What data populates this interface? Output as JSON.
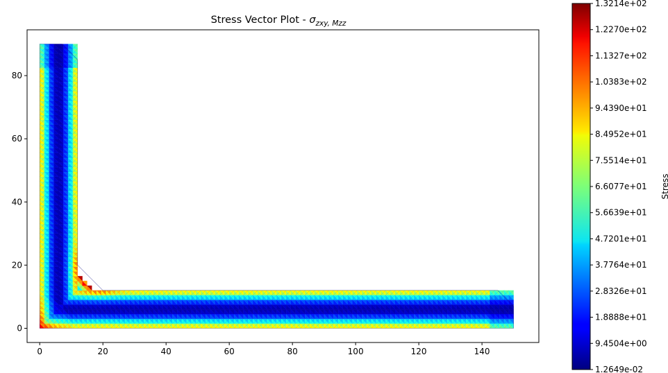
{
  "chart_data": {
    "type": "heatmap",
    "title_prefix": "Stress Vector Plot - ",
    "title_symbol": "σ",
    "title_subscript": "zxy, Mzz",
    "xlim": [
      -4,
      158
    ],
    "ylim": [
      -4.5,
      94.5
    ],
    "x_ticks": [
      0,
      20,
      40,
      60,
      80,
      100,
      120,
      140
    ],
    "y_ticks": [
      0,
      20,
      40,
      60,
      80
    ],
    "geometry": {
      "vertical_leg": {
        "x": [
          0,
          12
        ],
        "y": [
          0,
          90
        ]
      },
      "horizontal_leg": {
        "x": [
          0,
          150
        ],
        "y": [
          0,
          12
        ]
      },
      "fillet_radius": 8,
      "toe_radius": 5
    },
    "colorbar": {
      "label": "Stress",
      "colormap": "jet",
      "min": 0.012649,
      "max": 132.14,
      "tick_values": [
        0.012649,
        9.4504,
        18.888,
        28.326,
        37.764,
        47.201,
        56.639,
        66.077,
        75.514,
        84.952,
        94.39,
        103.83,
        113.27,
        122.7,
        132.14
      ],
      "tick_labels": [
        "1.2649e-02",
        "9.4504e+00",
        "1.8888e+01",
        "2.8326e+01",
        "3.7764e+01",
        "4.7201e+01",
        "5.6639e+01",
        "6.6077e+01",
        "7.5514e+01",
        "8.4952e+01",
        "9.4390e+01",
        "1.0383e+02",
        "1.1327e+02",
        "1.2270e+02",
        "1.3214e+02"
      ]
    },
    "stress_field": {
      "outer_edge_value": 90,
      "center_value": 5,
      "fillet_peak_value": 132,
      "heel_peak_value": 128
    }
  }
}
